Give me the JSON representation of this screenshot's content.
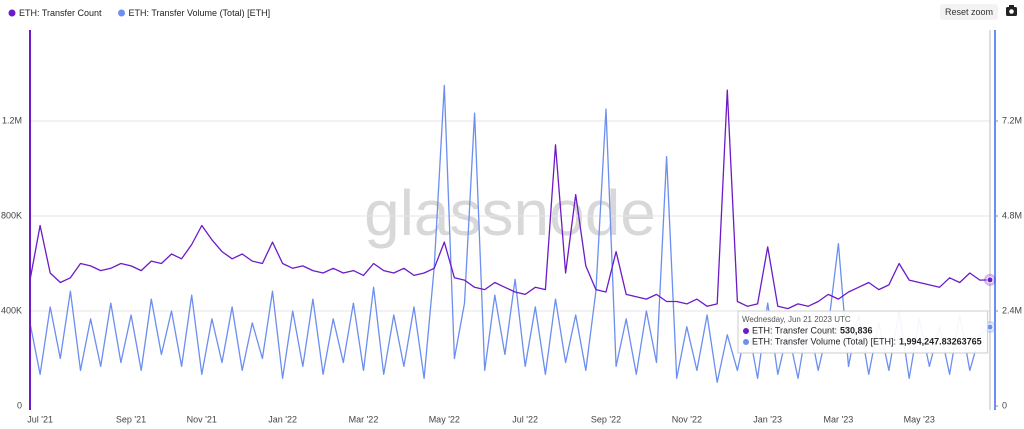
{
  "chart_data": {
    "type": "line",
    "legend_position": "top-left",
    "grid": true,
    "watermark": "glassnode",
    "reset_button": "Reset zoom",
    "categories": [
      null,
      "Jul '21",
      null,
      null,
      null,
      null,
      null,
      null,
      null,
      null,
      "Sep '21",
      null,
      null,
      null,
      null,
      null,
      null,
      "Nov '21",
      null,
      null,
      null,
      null,
      null,
      null,
      null,
      "Jan '22",
      null,
      null,
      null,
      null,
      null,
      null,
      null,
      "Mar '22",
      null,
      null,
      null,
      null,
      null,
      null,
      null,
      "May '22",
      null,
      null,
      null,
      null,
      null,
      null,
      null,
      "Jul '22",
      null,
      null,
      null,
      null,
      null,
      null,
      null,
      "Sep '22",
      null,
      null,
      null,
      null,
      null,
      null,
      null,
      "Nov '22",
      null,
      null,
      null,
      null,
      null,
      null,
      null,
      "Jan '23",
      null,
      null,
      null,
      null,
      null,
      null,
      "Mar '23",
      null,
      null,
      null,
      null,
      null,
      null,
      null,
      "May '23",
      null,
      null,
      null,
      null,
      null,
      null,
      null
    ],
    "ylim": [
      0,
      1600000
    ],
    "yticks": [
      0,
      {
        "value": 400000,
        "label": "400K"
      },
      {
        "value": 800000,
        "label": "800K"
      },
      {
        "value": 1200000,
        "label": "1.2M"
      }
    ],
    "y2lim": [
      0,
      9600000
    ],
    "y2ticks": [
      0,
      {
        "value": 2400000,
        "label": "2.4M"
      },
      {
        "value": 4800000,
        "label": "4.8M"
      },
      {
        "value": 7200000,
        "label": "7.2M"
      }
    ],
    "series": [
      {
        "name": "ETH: Transfer Count",
        "color": "#6c1bc7",
        "values": [
          530000,
          760000,
          560000,
          520000,
          540000,
          600000,
          590000,
          570000,
          580000,
          600000,
          590000,
          570000,
          610000,
          600000,
          640000,
          620000,
          680000,
          760000,
          700000,
          650000,
          620000,
          640000,
          610000,
          600000,
          690000,
          600000,
          580000,
          590000,
          570000,
          560000,
          580000,
          560000,
          570000,
          550000,
          600000,
          570000,
          560000,
          580000,
          550000,
          560000,
          580000,
          690000,
          540000,
          530000,
          500000,
          490000,
          520000,
          500000,
          480000,
          470000,
          500000,
          490000,
          1100000,
          560000,
          890000,
          590000,
          490000,
          480000,
          650000,
          470000,
          460000,
          450000,
          470000,
          440000,
          440000,
          430000,
          450000,
          420000,
          430000,
          1330000,
          440000,
          420000,
          430000,
          670000,
          420000,
          410000,
          430000,
          420000,
          440000,
          470000,
          450000,
          480000,
          500000,
          520000,
          490000,
          510000,
          600000,
          530000,
          520000,
          510000,
          500000,
          540000,
          520000,
          560000,
          530000,
          530836
        ]
      },
      {
        "name": "ETH: Transfer Volume (Total) [ETH]",
        "color": "#6b8ef0",
        "axis": "y2",
        "values": [
          2100000,
          800000,
          2500000,
          1200000,
          2900000,
          900000,
          2200000,
          1000000,
          2600000,
          1100000,
          2300000,
          900000,
          2700000,
          1300000,
          2400000,
          1000000,
          2800000,
          800000,
          2200000,
          1100000,
          2500000,
          900000,
          2100000,
          1200000,
          2900000,
          700000,
          2400000,
          1000000,
          2700000,
          800000,
          2200000,
          1100000,
          2600000,
          900000,
          3000000,
          800000,
          2300000,
          1000000,
          2500000,
          700000,
          3500000,
          8100000,
          1200000,
          2600000,
          7400000,
          900000,
          2800000,
          1300000,
          3200000,
          1000000,
          2500000,
          800000,
          2700000,
          1100000,
          2300000,
          900000,
          2900000,
          7500000,
          1000000,
          2200000,
          800000,
          2400000,
          1100000,
          6300000,
          700000,
          2000000,
          900000,
          2300000,
          600000,
          1800000,
          900000,
          2100000,
          700000,
          2600000,
          800000,
          1900000,
          700000,
          2200000,
          900000,
          2000000,
          4100000,
          1000000,
          2300000,
          800000,
          2100000,
          900000,
          2400000,
          700000,
          2200000,
          1000000,
          2000000,
          800000,
          2300000,
          900000,
          1800000,
          1994247.83263765
        ]
      }
    ],
    "tooltip": {
      "title": "Wednesday, Jun 21 2023 UTC",
      "items": [
        {
          "label": "ETH: Transfer Count:",
          "value": "530,836"
        },
        {
          "label": "ETH: Transfer Volume (Total) [ETH]:",
          "value": "1,994,247.83263765"
        }
      ]
    }
  }
}
